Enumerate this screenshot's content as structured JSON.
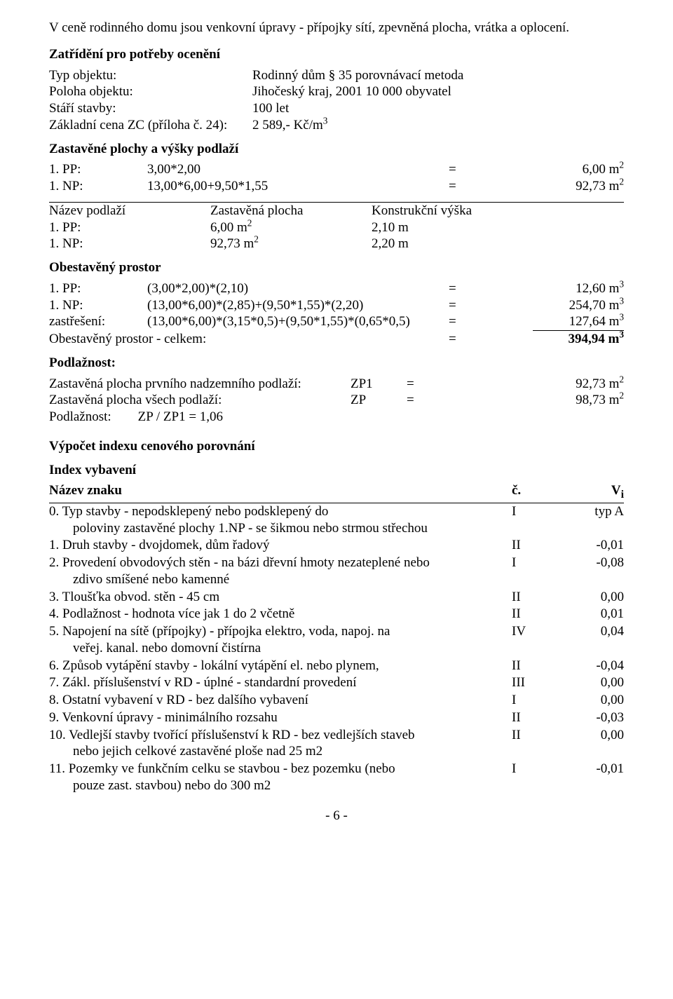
{
  "intro": "V ceně rodinného domu jsou venkovní úpravy - přípojky sítí, zpevněná plocha, vrátka a oplocení.",
  "cls_head": "Zatřídění pro potřeby ocenění",
  "cls": {
    "typ_l": "Typ objektu:",
    "typ_v": "Rodinný dům § 35 porovnávací metoda",
    "pol_l": "Poloha objektu:",
    "pol_v": "Jihočeský kraj, 2001 10 000 obyvatel",
    "star_l": "Stáří stavby:",
    "star_v": "100 let",
    "zc_l": "Základní cena ZC (příloha č. 24):",
    "zc_v": "2 589,- Kč/m"
  },
  "zast_head": "Zastavěné plochy a výšky podlaží",
  "z1": {
    "a": "1. PP:",
    "b": "3,00*2,00",
    "eq": "=",
    "r": "6,00 m"
  },
  "z2": {
    "a": "1. NP:",
    "b": "13,00*6,00+9,50*1,55",
    "eq": "=",
    "r": "92,73 m"
  },
  "kv_head": {
    "a": "Název podlaží",
    "b": "Zastavěná plocha",
    "c": "Konstrukční výška"
  },
  "kv1": {
    "a": "1. PP:",
    "b": "6,00 m",
    "c": "2,10 m"
  },
  "kv2": {
    "a": "1. NP:",
    "b": "92,73 m",
    "c": "2,20 m"
  },
  "ob_head": "Obestavěný prostor",
  "ob1": {
    "a": "1. PP:",
    "b": "(3,00*2,00)*(2,10)",
    "eq": "=",
    "r": "12,60 m"
  },
  "ob2": {
    "a": "1. NP:",
    "b": "(13,00*6,00)*(2,85)+(9,50*1,55)*(2,20)",
    "eq": "=",
    "r": "254,70 m"
  },
  "ob3": {
    "a": "zastřešení:",
    "b": "(13,00*6,00)*(3,15*0,5)+(9,50*1,55)*(0,65*0,5)",
    "eq": "=",
    "r": "127,64 m"
  },
  "ob_tot": {
    "a": "Obestavěný prostor - celkem:",
    "eq": "=",
    "r": "394,94 m"
  },
  "podl_head": "Podlažnost:",
  "p1": {
    "a": "Zastavěná plocha prvního nadzemního podlaží:",
    "b": "ZP1",
    "eq": "=",
    "r": "92,73 m"
  },
  "p2": {
    "a": "Zastavěná plocha všech podlaží:",
    "b": "ZP",
    "eq": "=",
    "r": "98,73 m"
  },
  "p3": "Podlažnost:        ZP / ZP1 = 1,06",
  "vyp_head": "Výpočet indexu cenového porovnání",
  "idx_head": "Index vybavení",
  "head_row": {
    "name": "Název znaku",
    "num": "č.",
    "val": "V"
  },
  "rows": [
    {
      "name": "0. Typ stavby - nepodsklepený nebo podsklepený do poloviny zastavěné plochy 1.NP - se šikmou nebo strmou střechou",
      "num": "I",
      "val": "typ A",
      "wrap": true,
      "wrap_at": 55
    },
    {
      "name": "1. Druh stavby - dvojdomek, dům řadový",
      "num": "II",
      "val": "-0,01"
    },
    {
      "name": "2. Provedení obvodových stěn - na bázi dřevní hmoty nezateplené nebo zdivo smíšené nebo kamenné",
      "num": "I",
      "val": "-0,08",
      "wrap": true,
      "wrap_at": 68
    },
    {
      "name": "3. Tloušťka obvod. stěn - 45 cm",
      "num": "II",
      "val": "0,00"
    },
    {
      "name": "4. Podlažnost - hodnota více jak 1 do 2 včetně",
      "num": "II",
      "val": "0,01"
    },
    {
      "name": "5. Napojení na sítě (přípojky) - přípojka elektro, voda, napoj. na veřej. kanal. nebo domovní čistírna",
      "num": "IV",
      "val": "0,04",
      "wrap": true,
      "wrap_at": 72
    },
    {
      "name": "6. Způsob vytápění stavby - lokální vytápění el. nebo plynem,",
      "num": "II",
      "val": "-0,04"
    },
    {
      "name": "7. Zákl. příslušenství v RD - úplné - standardní provedení",
      "num": "III",
      "val": "0,00"
    },
    {
      "name": "8. Ostatní vybavení v RD - bez dalšího vybavení",
      "num": "I",
      "val": "0,00"
    },
    {
      "name": "9. Venkovní úpravy - minimálního rozsahu",
      "num": "II",
      "val": "-0,03"
    },
    {
      "name": "10. Vedlejší stavby tvořící příslušenství k RD - bez vedlejších staveb nebo jejich celkové zastavěné ploše nad 25 m2",
      "num": "II",
      "val": "0,00",
      "wrap": true,
      "wrap_at": 70
    },
    {
      "name": "11. Pozemky ve funkčním celku se stavbou - bez pozemku (nebo pouze zast. stavbou) nebo do 300 m2",
      "num": "I",
      "val": "-0,01",
      "wrap": true,
      "wrap_at": 65
    }
  ],
  "page": "- 6 -"
}
